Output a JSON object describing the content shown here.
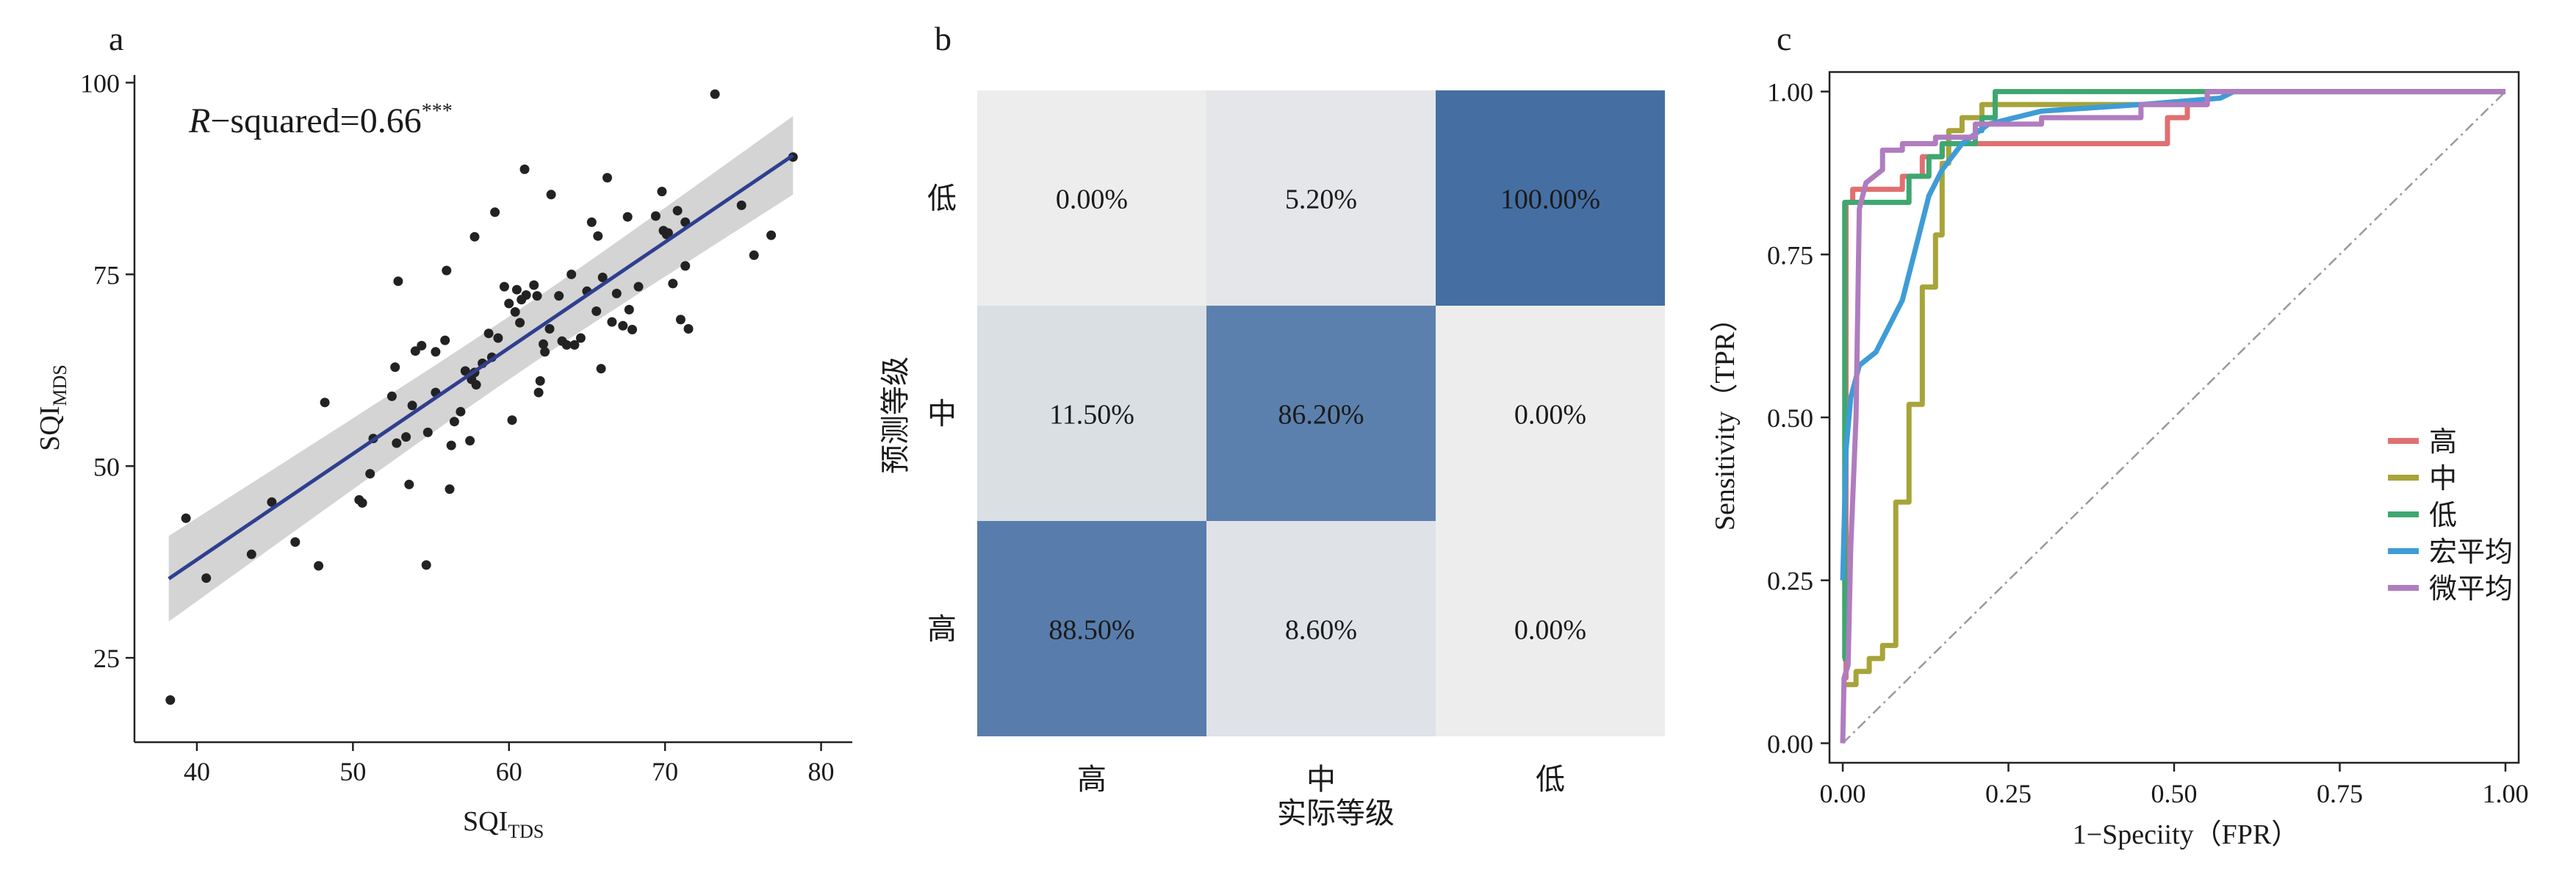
{
  "panel_a": {
    "label": "a",
    "xlabel_main": "SQI",
    "xlabel_sub": "TDS",
    "ylabel_main": "SQI",
    "ylabel_sub": "MDS",
    "annotation_italic": "R",
    "annotation_text": "−squared=0.66",
    "annotation_sup": "***",
    "colors": {
      "points": "#222222",
      "line": "#2f3f8f",
      "band": "#cccccc"
    },
    "chart_data": {
      "type": "scatter",
      "xlim": [
        36,
        82
      ],
      "ylim": [
        14,
        101
      ],
      "xticks": [
        40,
        50,
        60,
        70,
        80
      ],
      "yticks": [
        25,
        50,
        75,
        100
      ],
      "fit": {
        "slope": 1.38,
        "intercept": -17.4,
        "x_range": [
          38.2,
          78.2
        ]
      },
      "points": [
        [
          38.3,
          19.5
        ],
        [
          39.3,
          43.2
        ],
        [
          40.6,
          35.4
        ],
        [
          43.5,
          38.5
        ],
        [
          44.8,
          45.3
        ],
        [
          46.3,
          40.1
        ],
        [
          47.8,
          37.0
        ],
        [
          48.2,
          58.3
        ],
        [
          50.4,
          45.6
        ],
        [
          50.6,
          45.2
        ],
        [
          51.1,
          49.0
        ],
        [
          51.3,
          53.6
        ],
        [
          52.5,
          59.1
        ],
        [
          52.7,
          62.9
        ],
        [
          52.8,
          53.0
        ],
        [
          52.9,
          74.1
        ],
        [
          53.4,
          53.8
        ],
        [
          53.6,
          47.6
        ],
        [
          53.8,
          57.9
        ],
        [
          54.0,
          65.0
        ],
        [
          54.4,
          65.7
        ],
        [
          54.7,
          37.1
        ],
        [
          54.8,
          54.4
        ],
        [
          55.3,
          64.9
        ],
        [
          55.3,
          59.6
        ],
        [
          55.9,
          66.4
        ],
        [
          56.0,
          75.5
        ],
        [
          56.2,
          47.0
        ],
        [
          56.3,
          52.7
        ],
        [
          56.5,
          55.8
        ],
        [
          56.9,
          57.1
        ],
        [
          57.2,
          62.4
        ],
        [
          57.5,
          53.3
        ],
        [
          57.6,
          61.3
        ],
        [
          57.8,
          62.2
        ],
        [
          57.8,
          79.9
        ],
        [
          57.9,
          60.6
        ],
        [
          58.3,
          63.4
        ],
        [
          58.7,
          67.3
        ],
        [
          58.9,
          64.2
        ],
        [
          59.1,
          83.1
        ],
        [
          59.3,
          66.7
        ],
        [
          59.7,
          73.4
        ],
        [
          60.0,
          71.2
        ],
        [
          60.2,
          56.0
        ],
        [
          60.4,
          70.1
        ],
        [
          60.5,
          73.0
        ],
        [
          60.7,
          68.7
        ],
        [
          60.8,
          71.7
        ],
        [
          61.0,
          88.7
        ],
        [
          61.1,
          72.3
        ],
        [
          61.6,
          73.6
        ],
        [
          61.8,
          72.2
        ],
        [
          61.9,
          59.6
        ],
        [
          62.0,
          61.1
        ],
        [
          62.2,
          65.9
        ],
        [
          62.3,
          64.9
        ],
        [
          62.6,
          67.9
        ],
        [
          62.7,
          85.4
        ],
        [
          63.2,
          72.2
        ],
        [
          63.4,
          66.3
        ],
        [
          63.7,
          65.8
        ],
        [
          64.0,
          75.0
        ],
        [
          64.2,
          65.8
        ],
        [
          64.6,
          66.7
        ],
        [
          65.0,
          72.8
        ],
        [
          65.3,
          81.8
        ],
        [
          65.6,
          70.2
        ],
        [
          65.7,
          80.0
        ],
        [
          65.9,
          62.7
        ],
        [
          66.0,
          74.6
        ],
        [
          66.3,
          87.6
        ],
        [
          66.6,
          68.8
        ],
        [
          66.9,
          72.5
        ],
        [
          67.3,
          68.3
        ],
        [
          67.6,
          82.5
        ],
        [
          67.7,
          70.4
        ],
        [
          67.9,
          67.8
        ],
        [
          68.3,
          73.4
        ],
        [
          69.4,
          82.6
        ],
        [
          69.8,
          85.8
        ],
        [
          69.9,
          80.7
        ],
        [
          70.1,
          80.2
        ],
        [
          70.2,
          80.4
        ],
        [
          70.5,
          73.8
        ],
        [
          70.8,
          83.3
        ],
        [
          71.0,
          69.1
        ],
        [
          71.3,
          81.8
        ],
        [
          71.3,
          76.1
        ],
        [
          71.5,
          67.9
        ],
        [
          73.2,
          98.5
        ],
        [
          74.9,
          84.0
        ],
        [
          75.7,
          77.5
        ],
        [
          76.8,
          80.1
        ],
        [
          78.2,
          90.3
        ]
      ]
    }
  },
  "panel_b": {
    "label": "b",
    "xlabel": "实际等级",
    "ylabel": "预测等级",
    "colors": {
      "min": "#ededed",
      "max": "#456fa3"
    },
    "chart_data": {
      "type": "heatmap",
      "x_categories": [
        "高",
        "中",
        "低"
      ],
      "y_categories_top_to_bottom": [
        "低",
        "中",
        "高"
      ],
      "values_percent": [
        [
          0.0,
          5.2,
          100.0
        ],
        [
          11.5,
          86.2,
          0.0
        ],
        [
          88.5,
          8.6,
          0.0
        ]
      ],
      "cell_labels": [
        [
          "0.00%",
          "5.20%",
          "100.00%"
        ],
        [
          "11.50%",
          "86.20%",
          "0.00%"
        ],
        [
          "88.50%",
          "8.60%",
          "0.00%"
        ]
      ]
    }
  },
  "panel_c": {
    "label": "c",
    "xlabel": "1−Speciity（FPR）",
    "ylabel": "Sensitivity（TPR）",
    "chart_data": {
      "type": "line",
      "xlim": [
        -0.02,
        1.02
      ],
      "ylim": [
        -0.03,
        1.03
      ],
      "xticks": [
        0.0,
        0.25,
        0.5,
        0.75,
        1.0
      ],
      "xtick_labels": [
        "0.00",
        "0.25",
        "0.50",
        "0.75",
        "1.00"
      ],
      "yticks": [
        0.0,
        0.25,
        0.5,
        0.75,
        1.0
      ],
      "ytick_labels": [
        "0.00",
        "0.25",
        "0.50",
        "0.75",
        "1.00"
      ],
      "diagonal": true,
      "legend_position": "right",
      "series": [
        {
          "name": "高",
          "color": "#e07070",
          "points": [
            [
              0,
              0.1
            ],
            [
              0.005,
              0.1
            ],
            [
              0.005,
              0.83
            ],
            [
              0.015,
              0.83
            ],
            [
              0.015,
              0.85
            ],
            [
              0.09,
              0.85
            ],
            [
              0.09,
              0.87
            ],
            [
              0.12,
              0.87
            ],
            [
              0.12,
              0.9
            ],
            [
              0.15,
              0.9
            ],
            [
              0.15,
              0.92
            ],
            [
              0.49,
              0.92
            ],
            [
              0.49,
              0.96
            ],
            [
              0.52,
              0.96
            ],
            [
              0.52,
              0.98
            ],
            [
              0.55,
              0.98
            ],
            [
              0.55,
              1.0
            ],
            [
              1.0,
              1.0
            ]
          ]
        },
        {
          "name": "中",
          "color": "#a7a43a",
          "points": [
            [
              0,
              0.09
            ],
            [
              0.02,
              0.09
            ],
            [
              0.02,
              0.11
            ],
            [
              0.04,
              0.11
            ],
            [
              0.04,
              0.13
            ],
            [
              0.06,
              0.13
            ],
            [
              0.06,
              0.15
            ],
            [
              0.08,
              0.15
            ],
            [
              0.08,
              0.37
            ],
            [
              0.1,
              0.37
            ],
            [
              0.1,
              0.52
            ],
            [
              0.12,
              0.52
            ],
            [
              0.12,
              0.7
            ],
            [
              0.14,
              0.7
            ],
            [
              0.14,
              0.78
            ],
            [
              0.15,
              0.78
            ],
            [
              0.15,
              0.89
            ],
            [
              0.16,
              0.89
            ],
            [
              0.16,
              0.94
            ],
            [
              0.18,
              0.94
            ],
            [
              0.18,
              0.96
            ],
            [
              0.21,
              0.96
            ],
            [
              0.21,
              0.98
            ],
            [
              0.55,
              0.98
            ],
            [
              0.55,
              1.0
            ],
            [
              1.0,
              1.0
            ]
          ]
        },
        {
          "name": "低",
          "color": "#3ea76f",
          "points": [
            [
              0,
              0.13
            ],
            [
              0.003,
              0.13
            ],
            [
              0.003,
              0.83
            ],
            [
              0.1,
              0.83
            ],
            [
              0.1,
              0.87
            ],
            [
              0.13,
              0.87
            ],
            [
              0.13,
              0.9
            ],
            [
              0.15,
              0.9
            ],
            [
              0.15,
              0.92
            ],
            [
              0.2,
              0.92
            ],
            [
              0.2,
              0.94
            ],
            [
              0.21,
              0.94
            ],
            [
              0.21,
              0.96
            ],
            [
              0.23,
              0.96
            ],
            [
              0.23,
              1.0
            ],
            [
              1.0,
              1.0
            ]
          ]
        },
        {
          "name": "宏平均",
          "color": "#3e9cd6",
          "points": [
            [
              0,
              0.25
            ],
            [
              0.005,
              0.45
            ],
            [
              0.012,
              0.53
            ],
            [
              0.025,
              0.58
            ],
            [
              0.05,
              0.6
            ],
            [
              0.07,
              0.64
            ],
            [
              0.09,
              0.68
            ],
            [
              0.11,
              0.76
            ],
            [
              0.13,
              0.84
            ],
            [
              0.15,
              0.88
            ],
            [
              0.18,
              0.92
            ],
            [
              0.22,
              0.95
            ],
            [
              0.3,
              0.97
            ],
            [
              0.45,
              0.98
            ],
            [
              0.57,
              0.99
            ],
            [
              0.59,
              1.0
            ],
            [
              1.0,
              1.0
            ]
          ]
        },
        {
          "name": "微平均",
          "color": "#b07cc0",
          "points": [
            [
              0,
              0.0
            ],
            [
              0.002,
              0.1
            ],
            [
              0.008,
              0.12
            ],
            [
              0.012,
              0.3
            ],
            [
              0.02,
              0.5
            ],
            [
              0.025,
              0.82
            ],
            [
              0.03,
              0.84
            ],
            [
              0.035,
              0.86
            ],
            [
              0.06,
              0.88
            ],
            [
              0.06,
              0.91
            ],
            [
              0.09,
              0.91
            ],
            [
              0.09,
              0.92
            ],
            [
              0.14,
              0.92
            ],
            [
              0.14,
              0.93
            ],
            [
              0.2,
              0.93
            ],
            [
              0.2,
              0.95
            ],
            [
              0.3,
              0.95
            ],
            [
              0.3,
              0.96
            ],
            [
              0.45,
              0.96
            ],
            [
              0.45,
              0.98
            ],
            [
              0.55,
              0.98
            ],
            [
              0.55,
              1.0
            ],
            [
              1.0,
              1.0
            ]
          ]
        }
      ]
    }
  }
}
